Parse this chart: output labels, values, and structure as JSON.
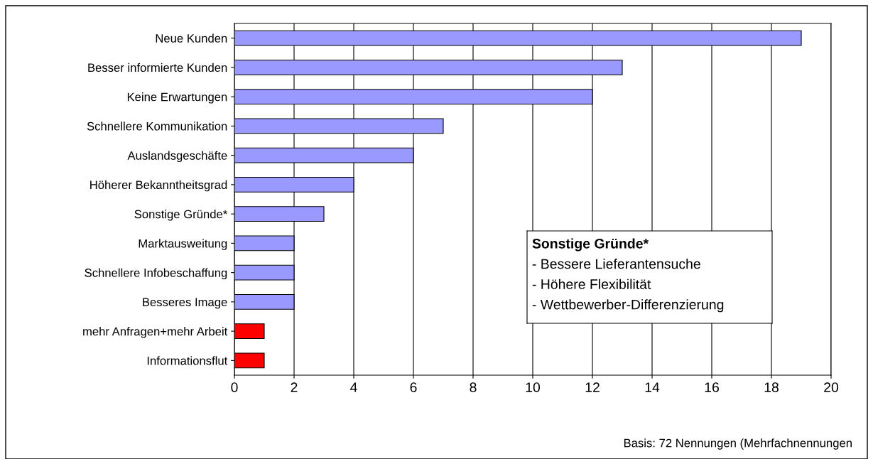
{
  "chart_data": {
    "type": "bar",
    "orientation": "horizontal",
    "categories": [
      "Neue Kunden",
      "Besser informierte Kunden",
      "Keine Erwartungen",
      "Schnellere Kommunikation",
      "Auslandsgeschäfte",
      "Höherer Bekanntheitsgrad",
      "Sonstige Gründe*",
      "Marktausweitung",
      "Schnellere Infobeschaffung",
      "Besseres Image",
      "mehr Anfragen+mehr Arbeit",
      "Informationsflut"
    ],
    "values": [
      19,
      13,
      12,
      7,
      6,
      4,
      3,
      2,
      2,
      2,
      1,
      1
    ],
    "colors": [
      "#9999ff",
      "#9999ff",
      "#9999ff",
      "#9999ff",
      "#9999ff",
      "#9999ff",
      "#9999ff",
      "#9999ff",
      "#9999ff",
      "#9999ff",
      "#ff0000",
      "#ff0000"
    ],
    "xlim": [
      0,
      20
    ],
    "xticks": [
      0,
      2,
      4,
      6,
      8,
      10,
      12,
      14,
      16,
      18,
      20
    ],
    "grid": "x",
    "legend": false,
    "annotations": [
      "Sonstige Gründe*\n- Bessere Lieferantensuche\n- Höhere Flexibilität\n- Wettbewerber-Differenzierung",
      "Basis: 72 Nennungen (Mehrfachnennungen"
    ]
  }
}
